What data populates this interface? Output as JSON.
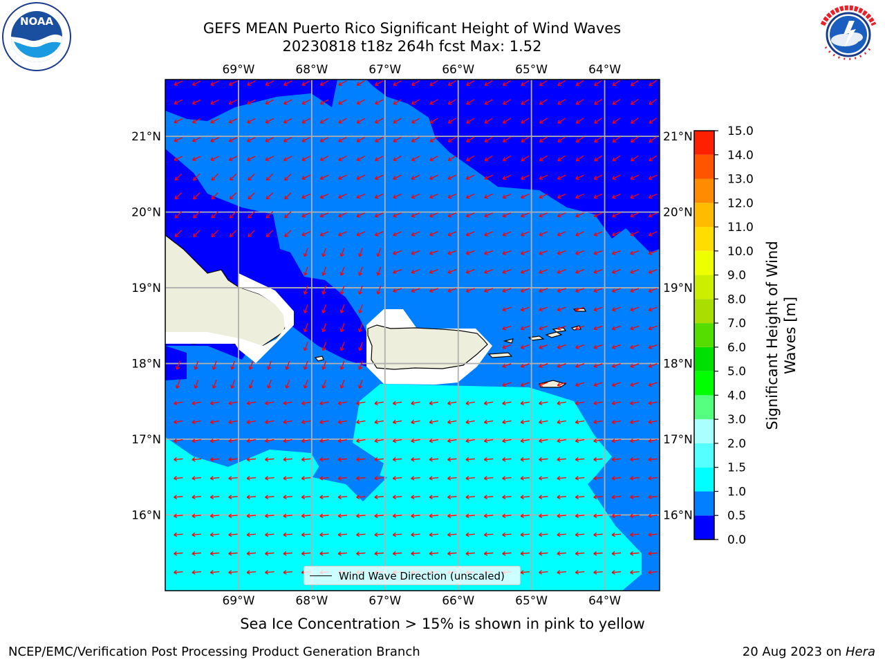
{
  "header": {
    "title_line1": "GEFS MEAN Puerto Rico Significant Height of Wind Waves",
    "title_line2": "20230818 t18z 264h fcst   Max: 1.52"
  },
  "logos": {
    "left": {
      "name": "noaa-logo",
      "text": "NOAA",
      "ring_text": "NATIONAL OCEANIC AND ATMOSPHERIC ADMINISTRATION · U.S. DEPARTMENT OF COMMERCE"
    },
    "right": {
      "name": "nws-logo",
      "ring_text": "NATIONAL WEATHER SERVICE"
    }
  },
  "map": {
    "lon_labels": [
      "69°W",
      "68°W",
      "67°W",
      "66°W",
      "65°W",
      "64°W"
    ],
    "lat_labels": [
      "21°N",
      "20°N",
      "19°N",
      "18°N",
      "17°N",
      "16°N"
    ],
    "lon_range": [
      -70.0,
      -63.25
    ],
    "lat_range": [
      15.0,
      21.75
    ],
    "grid": true,
    "wave_direction": "toward west-southwest",
    "colors": {
      "c0_05": "#0000ff",
      "c05_1": "#0080ff",
      "c1_15": "#00ffff",
      "land": "#eeeedc",
      "arrow": "#ff0000"
    }
  },
  "colorbar": {
    "title_line1": "Significant Height of Wind",
    "title_line2": "Waves [m]",
    "tick_labels": [
      "0.0",
      "0.5",
      "1.0",
      "1.5",
      "2.0",
      "3.0",
      "4.0",
      "5.0",
      "6.0",
      "7.0",
      "8.0",
      "9.0",
      "10.0",
      "11.0",
      "12.0",
      "13.0",
      "14.0",
      "15.0"
    ],
    "colors": [
      "#0000ff",
      "#0080ff",
      "#00ffff",
      "#55ffff",
      "#aaffff",
      "#55ff80",
      "#00ff00",
      "#00e000",
      "#55dd00",
      "#aadd00",
      "#ccee00",
      "#eeff00",
      "#ffdd00",
      "#ffbb00",
      "#ff8c00",
      "#ff5500",
      "#ff2000"
    ]
  },
  "legend": {
    "label": "Wind Wave Direction (unscaled)"
  },
  "note": "Sea Ice Concentration > 15% is shown in pink to yellow",
  "footer": {
    "left": "NCEP/EMC/Verification Post Processing Product Generation Branch",
    "right_prefix": "20 Aug 2023 on ",
    "right_host": "Hera"
  }
}
